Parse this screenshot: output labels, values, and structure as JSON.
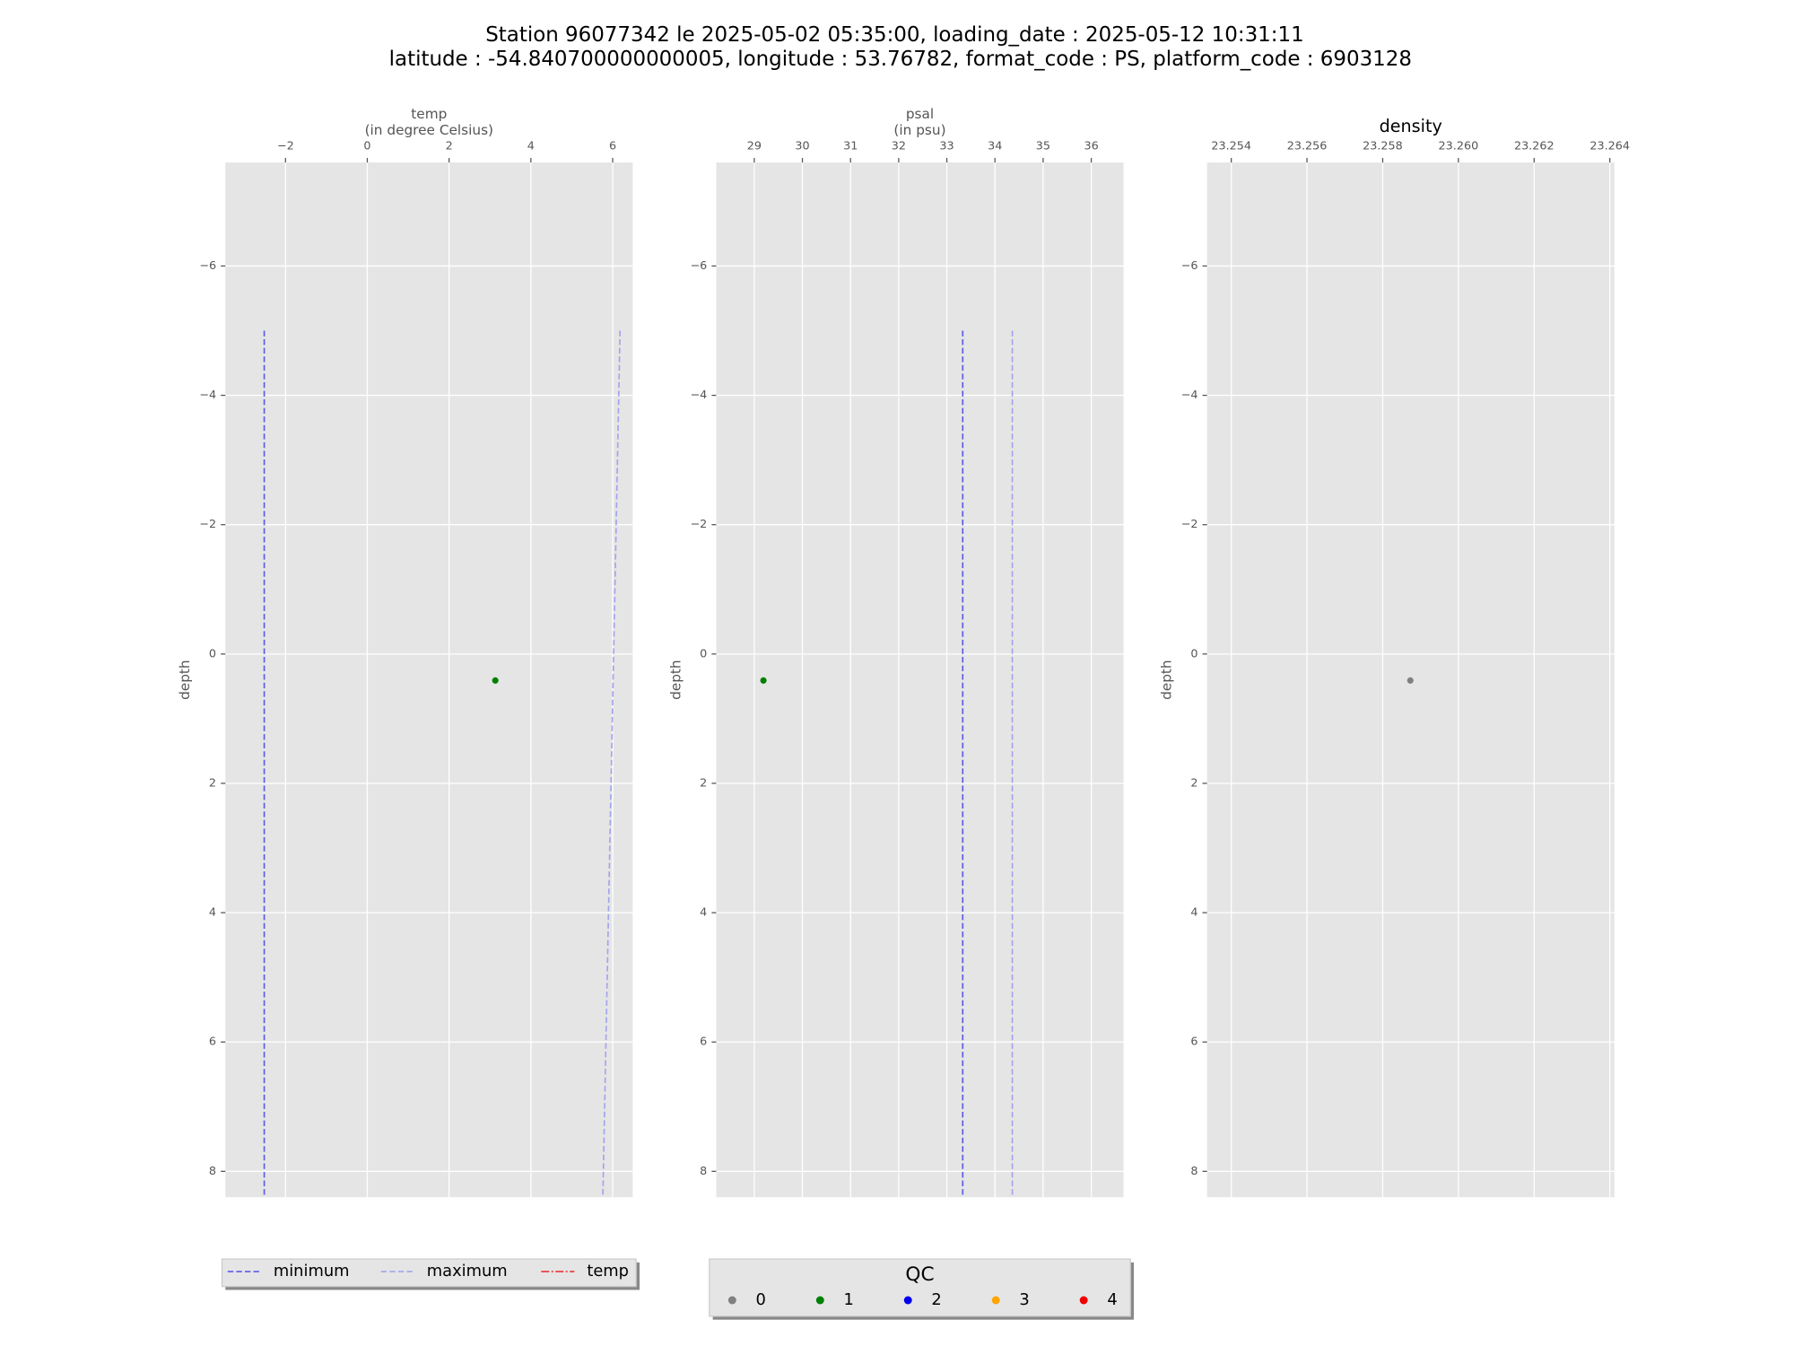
{
  "title": [
    "Station 96077342 le 2025-05-02 05:35:00, loading_date : 2025-05-12 10:31:11",
    "latitude : -54.840700000000005, longitude : 53.76782, format_code : PS, platform_code : 6903128"
  ],
  "chart_data": [
    {
      "type": "scatter",
      "xlabel": [
        "temp",
        "(in degree Celsius)"
      ],
      "ylabel": "depth",
      "xlim": [
        -3.47,
        6.49
      ],
      "ylim": [
        8.4,
        -7.6
      ],
      "xticks": [
        {
          "value": -2,
          "label": "−2"
        },
        0,
        2,
        4,
        6
      ],
      "yticks": [
        {
          "value": -6,
          "label": "−6"
        },
        {
          "value": -4,
          "label": "−4"
        },
        {
          "value": -2,
          "label": "−2"
        },
        0,
        2,
        4,
        6,
        8
      ],
      "grid": true,
      "series": [
        {
          "name": "minimum",
          "color": "#5b5be6",
          "x": [
            -2.52,
            -2.52
          ],
          "y": [
            -5,
            8.4
          ]
        },
        {
          "name": "maximum",
          "color": "#a3a3ee",
          "x": [
            6.18,
            5.76
          ],
          "y": [
            -5,
            8.4
          ]
        }
      ],
      "points": {
        "x": [
          3.13
        ],
        "y": [
          0.41
        ],
        "qc": [
          1
        ]
      }
    },
    {
      "type": "scatter",
      "xlabel": [
        "psal",
        "(in psu)"
      ],
      "ylabel": "depth",
      "xlim": [
        28.21,
        36.67
      ],
      "ylim": [
        8.4,
        -7.6
      ],
      "xticks": [
        29,
        30,
        31,
        32,
        33,
        34,
        35,
        36
      ],
      "yticks": [
        {
          "value": -6,
          "label": "−6"
        },
        {
          "value": -4,
          "label": "−4"
        },
        {
          "value": -2,
          "label": "−2"
        },
        0,
        2,
        4,
        6,
        8
      ],
      "grid": true,
      "series": [
        {
          "name": "minimum",
          "color": "#5b5be6",
          "x": [
            33.33,
            33.33
          ],
          "y": [
            -5,
            8.4
          ]
        },
        {
          "name": "maximum",
          "color": "#a3a3ee",
          "x": [
            34.36,
            34.36
          ],
          "y": [
            -5,
            8.4
          ]
        }
      ],
      "points": {
        "x": [
          29.19
        ],
        "y": [
          0.41
        ],
        "qc": [
          1
        ]
      }
    },
    {
      "type": "scatter",
      "axes_title": "density",
      "ylabel": "depth",
      "xlim": [
        23.25336,
        23.26412
      ],
      "ylim": [
        8.4,
        -7.6
      ],
      "xticks": [
        23.254,
        23.256,
        23.258,
        {
          "value": 23.26,
          "label": "23.260"
        },
        23.262,
        23.264
      ],
      "yticks": [
        {
          "value": -6,
          "label": "−6"
        },
        {
          "value": -4,
          "label": "−4"
        },
        {
          "value": -2,
          "label": "−2"
        },
        0,
        2,
        4,
        6,
        8
      ],
      "grid": true,
      "series": [],
      "points": {
        "x": [
          23.25873
        ],
        "y": [
          0.41
        ],
        "qc": [
          0
        ]
      }
    }
  ],
  "line_legend": [
    {
      "label": "minimum",
      "color": "#5b5be6"
    },
    {
      "label": "maximum",
      "color": "#a3a3ee"
    },
    {
      "label": "temp",
      "color": "#ee3333"
    }
  ],
  "qc_legend": {
    "title": "QC",
    "items": [
      {
        "label": "0",
        "color": "#808080"
      },
      {
        "label": "1",
        "color": "#008000"
      },
      {
        "label": "2",
        "color": "#0000ee"
      },
      {
        "label": "3",
        "color": "#ffa500"
      },
      {
        "label": "4",
        "color": "#ee0000"
      }
    ]
  }
}
